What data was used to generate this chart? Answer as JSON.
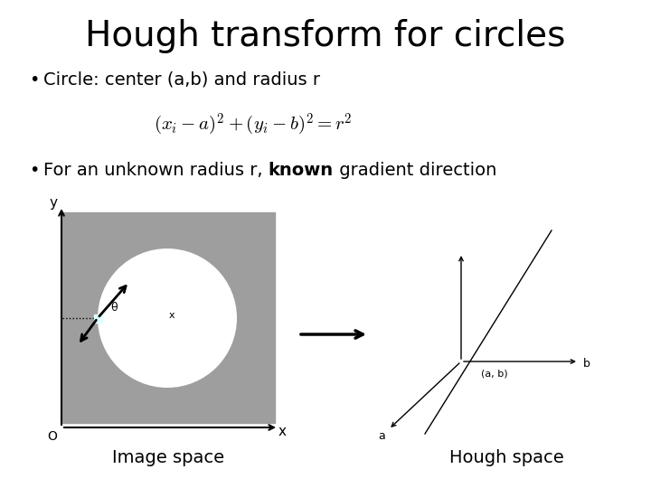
{
  "title": "Hough transform for circles",
  "bullet1": "Circle: center (a,b) and radius r",
  "bullet2_prefix": "For an unknown radius r, ",
  "bullet2_bold": "known",
  "bullet2_suffix": " gradient direction",
  "label_image": "Image space",
  "label_hough": "Hough space",
  "bg_color": "#9e9e9e",
  "white": "#ffffff",
  "black": "#000000",
  "title_fontsize": 28,
  "body_fontsize": 14,
  "sublabel_fontsize": 14,
  "formula_fontsize": 15
}
